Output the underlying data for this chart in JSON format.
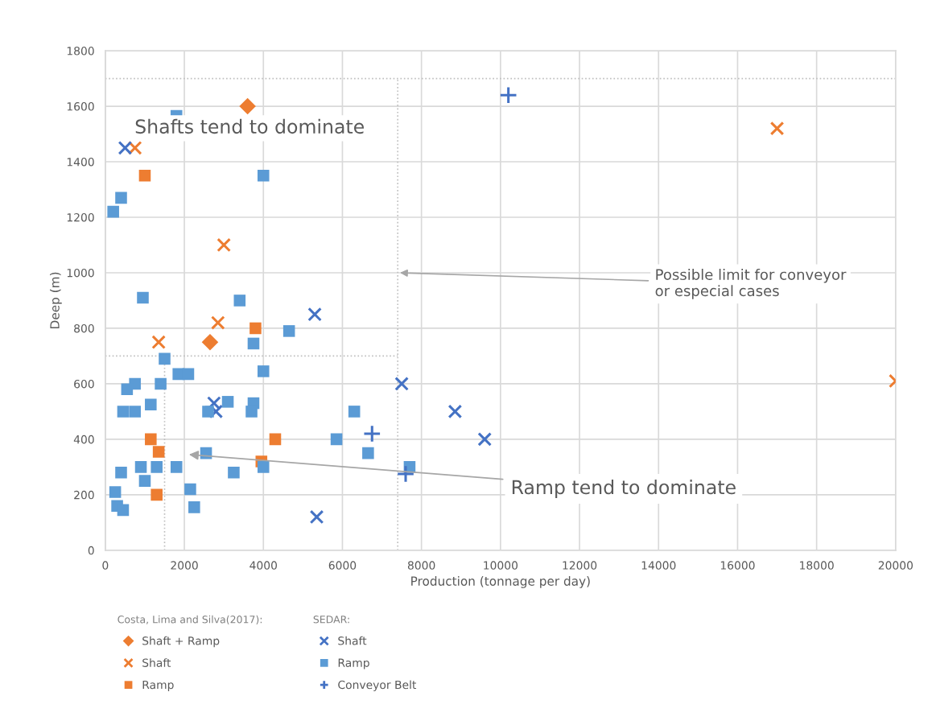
{
  "chart_data": {
    "type": "scatter",
    "xlabel": "Production (tonnage per day)",
    "ylabel": "Deep (m)",
    "xlim": [
      0,
      20000
    ],
    "xticks": [
      0,
      2000,
      4000,
      6000,
      8000,
      10000,
      12000,
      14000,
      16000,
      18000,
      20000
    ],
    "ylim": [
      0,
      1800
    ],
    "yticks": [
      0,
      200,
      400,
      600,
      800,
      1000,
      1200,
      1400,
      1600,
      1800
    ],
    "grid": true,
    "legend": "bottom",
    "annotations": [
      "Shafts tend to dominate",
      {
        "text": "Possible limit for conveyor\nor especial cases",
        "x": 7400,
        "y": 1000
      },
      "Ramp tend to dominate",
      "Costa, Lima and Silva(2017):",
      "SEDAR:"
    ],
    "series": [
      {
        "type": "line",
        "color": "#bfbfbf",
        "line_style": "dotted",
        "marker": "none",
        "x": [
          0,
          20000
        ],
        "values": [
          1700,
          1700
        ]
      },
      {
        "type": "line",
        "color": "#bfbfbf",
        "line_style": "dotted",
        "marker": "none",
        "x": [
          0,
          7400
        ],
        "values": [
          700,
          700
        ]
      },
      {
        "type": "line",
        "color": "#bfbfbf",
        "line_style": "dotted",
        "marker": "none",
        "x": [
          7400,
          7400
        ],
        "values": [
          0,
          1700
        ]
      },
      {
        "type": "line",
        "color": "#bfbfbf",
        "line_style": "dotted",
        "marker": "none",
        "x": [
          1500,
          1500
        ],
        "values": [
          0,
          700
        ]
      },
      {
        "name": "Shaft + Ramp",
        "color": "#ed7d31",
        "marker": "diamond",
        "x": [
          3600,
          2650
        ],
        "values": [
          1600,
          750
        ]
      },
      {
        "name": "Shaft",
        "color": "#ed7d31",
        "marker": "cross",
        "x": [
          750,
          3000,
          2850,
          1350,
          17000,
          20000
        ],
        "values": [
          1450,
          1100,
          820,
          750,
          1520,
          610
        ]
      },
      {
        "name": "Ramp",
        "color": "#ed7d31",
        "marker": "square",
        "x": [
          1000,
          3800,
          1150,
          1350,
          1300,
          4300,
          3950
        ],
        "values": [
          1350,
          800,
          400,
          355,
          200,
          400,
          320
        ]
      },
      {
        "name": "Shaft",
        "color": "#4472c4",
        "marker": "cross",
        "x": [
          500,
          5300,
          2750,
          2800,
          7500,
          8850,
          9600,
          5350
        ],
        "values": [
          1450,
          850,
          530,
          500,
          600,
          500,
          400,
          120
        ]
      },
      {
        "name": "Ramp",
        "color": "#5b9bd5",
        "marker": "square",
        "x": [
          1800,
          4000,
          400,
          200,
          950,
          3400,
          4650,
          3750,
          1500,
          4000,
          1850,
          2100,
          750,
          550,
          1400,
          450,
          750,
          1150,
          2600,
          3100,
          3750,
          3700,
          6300,
          5850,
          6650,
          7700,
          2550,
          4000,
          3250,
          400,
          900,
          1300,
          1800,
          1000,
          2150,
          250,
          300,
          450,
          2250
        ],
        "values": [
          1565,
          1350,
          1270,
          1220,
          910,
          900,
          790,
          745,
          690,
          645,
          635,
          635,
          600,
          580,
          600,
          500,
          500,
          525,
          500,
          535,
          530,
          500,
          500,
          400,
          350,
          300,
          350,
          300,
          280,
          280,
          300,
          300,
          300,
          250,
          220,
          210,
          160,
          145,
          155
        ]
      },
      {
        "name": "Conveyor Belt",
        "color": "#4472c4",
        "marker": "plus",
        "x": [
          10200,
          6750,
          7600
        ],
        "values": [
          1640,
          420,
          275
        ]
      }
    ]
  }
}
